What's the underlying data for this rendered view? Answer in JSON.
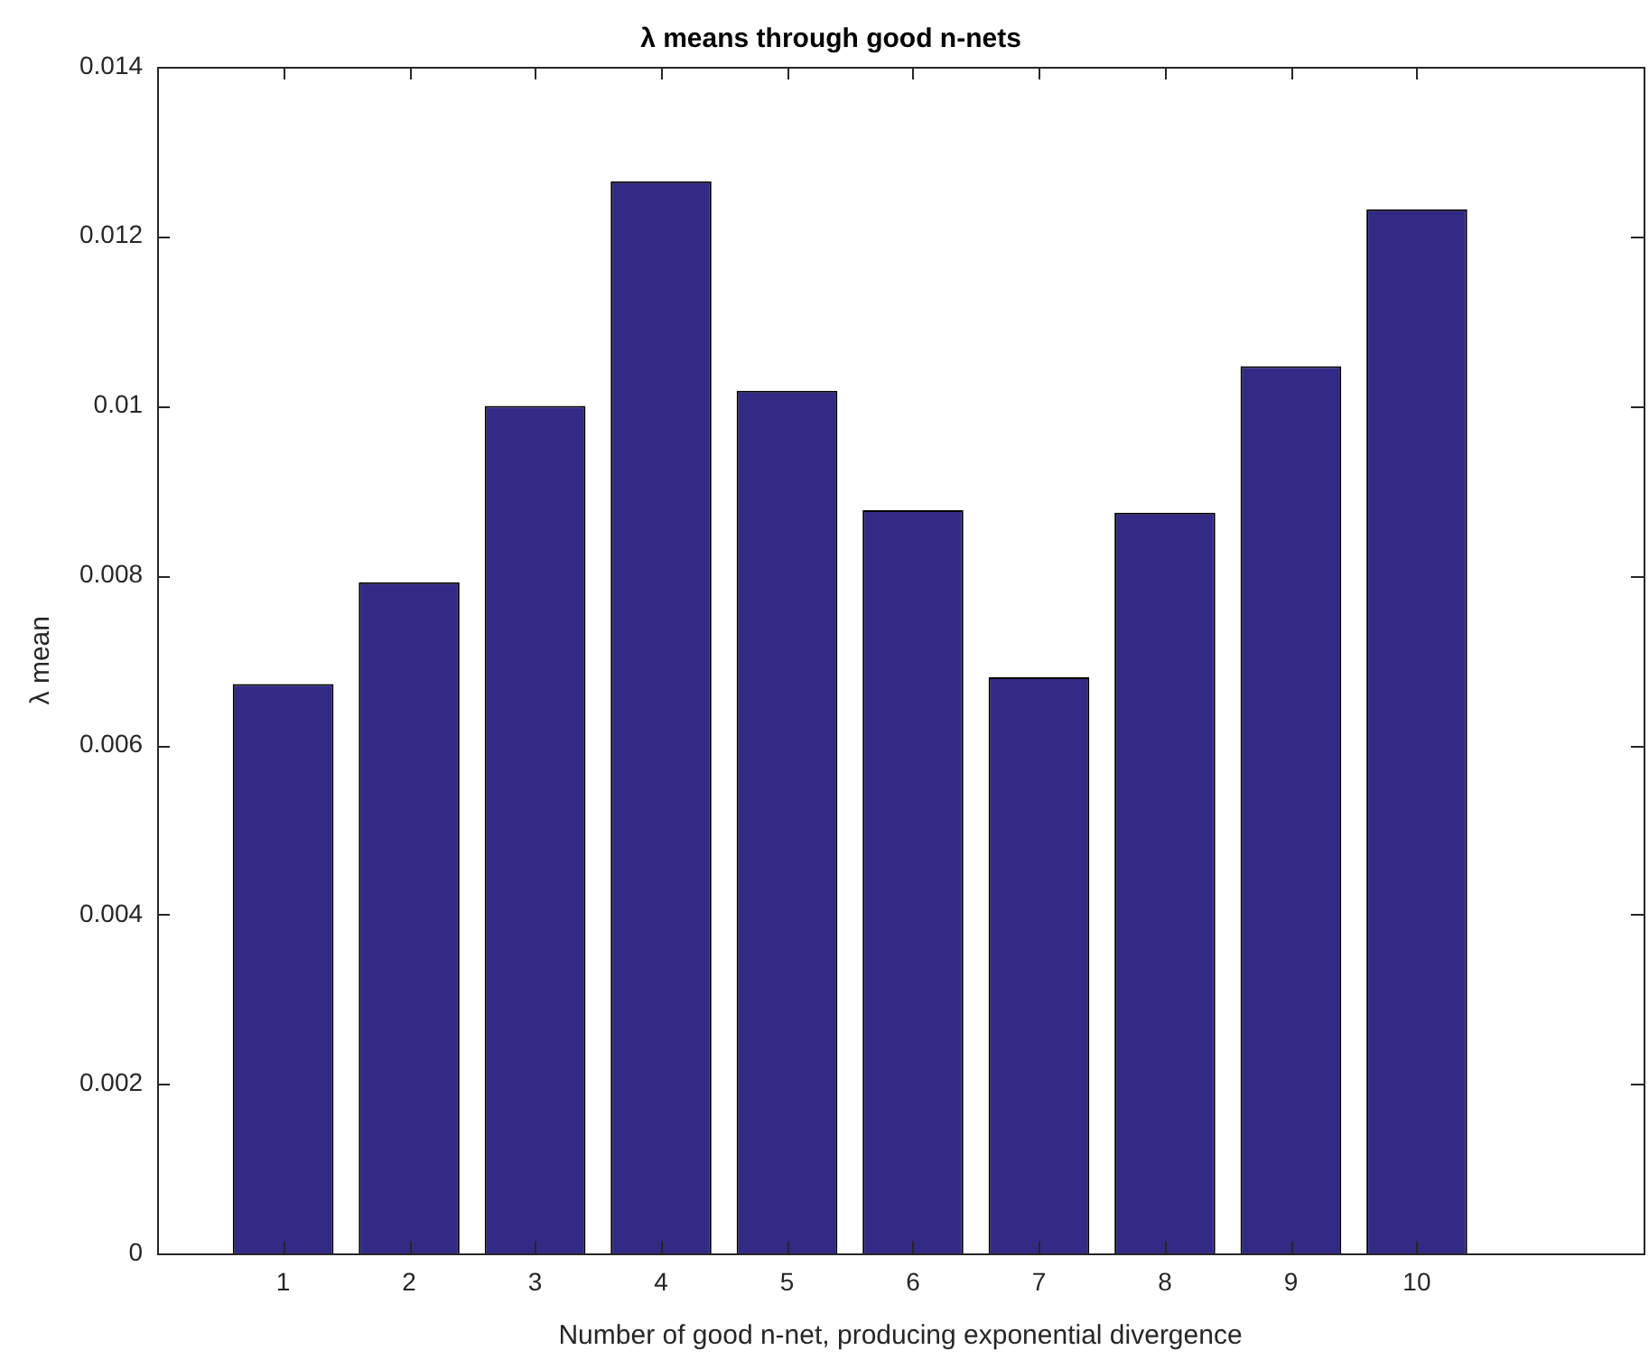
{
  "chart_data": {
    "type": "bar",
    "title": "λ means through good n-nets",
    "xlabel": "Number of good n-net, producing exponential divergence",
    "ylabel": "λ mean",
    "x": [
      1,
      2,
      3,
      4,
      5,
      6,
      7,
      8,
      9,
      10
    ],
    "values": [
      0.00672,
      0.00792,
      0.01,
      0.01265,
      0.01018,
      0.00877,
      0.0068,
      0.00874,
      0.01047,
      0.01232
    ],
    "color": "#332a85",
    "xlim": [
      0,
      11.8
    ],
    "xticks": [
      1,
      2,
      3,
      4,
      5,
      6,
      7,
      8,
      9,
      10
    ],
    "ylim": [
      0,
      0.014
    ],
    "yticks": [
      0,
      0.002,
      0.004,
      0.006,
      0.008,
      0.01,
      0.012,
      0.014
    ],
    "grid": false,
    "legend": false
  }
}
